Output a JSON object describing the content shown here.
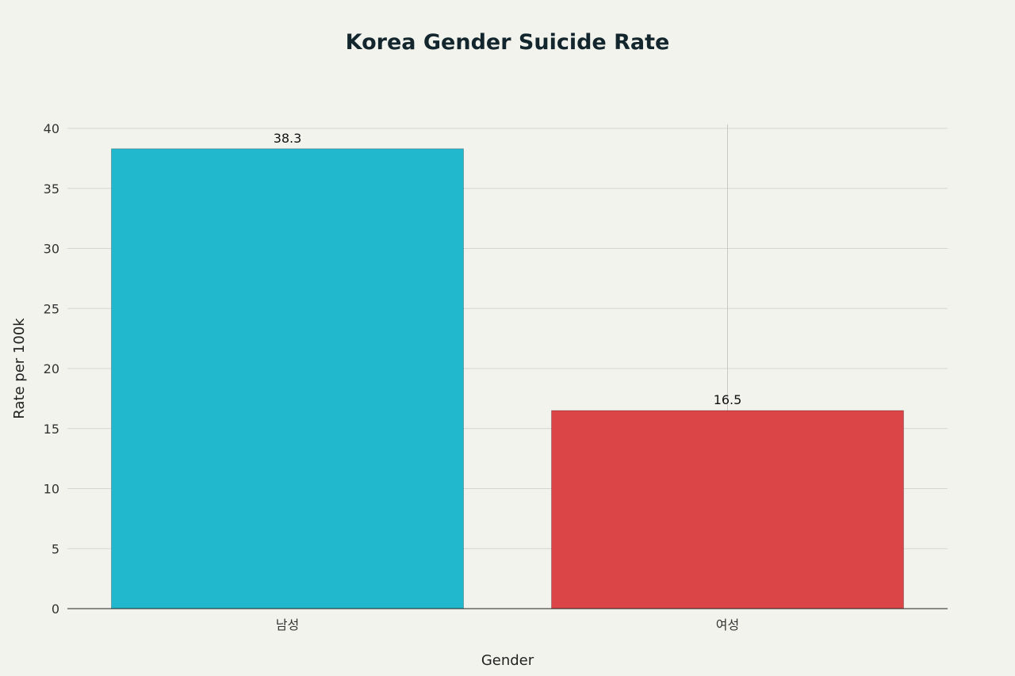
{
  "chart_data": {
    "type": "bar",
    "title": "Korea Gender Suicide Rate",
    "xlabel": "Gender",
    "ylabel": "Rate per 100k",
    "categories": [
      "남성",
      "여성"
    ],
    "values": [
      38.3,
      16.5
    ],
    "value_labels": [
      "38.3",
      "16.5"
    ],
    "colors": [
      "#21b7cc",
      "#db4547"
    ],
    "ylim": [
      0,
      40
    ],
    "yticks": [
      0,
      5,
      10,
      15,
      20,
      25,
      30,
      35,
      40
    ],
    "grid": true,
    "legend": "none"
  }
}
